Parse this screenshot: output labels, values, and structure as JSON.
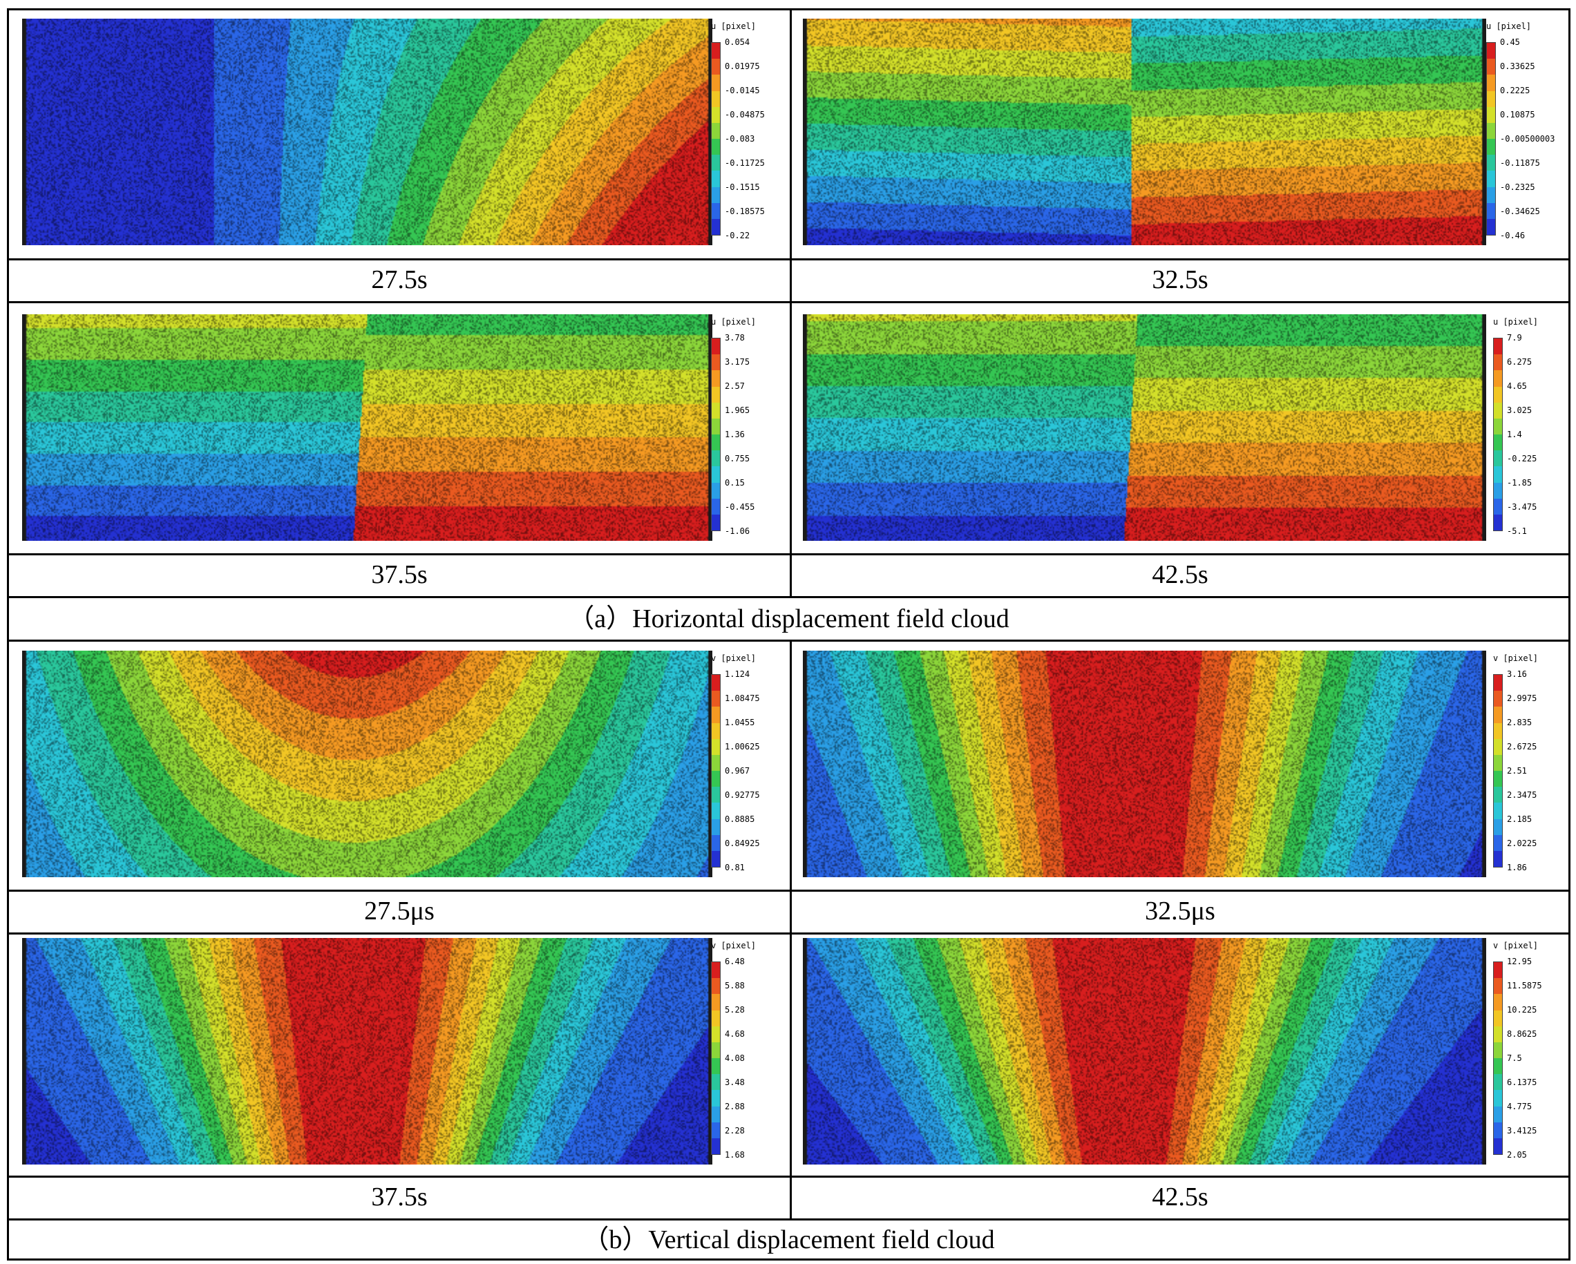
{
  "colormap": [
    "#d81e1e",
    "#ea5a20",
    "#f59a22",
    "#f2c624",
    "#d3e02a",
    "#8cd63a",
    "#35c653",
    "#2ac79c",
    "#2ac6d8",
    "#2a9fe6",
    "#2a66e8",
    "#2431d2"
  ],
  "sections": {
    "horizontal": {
      "label": "（a）Horizontal displacement field cloud"
    },
    "vertical": {
      "label": "（b）Vertical displacement field cloud"
    }
  },
  "panels": [
    {
      "id": "h-27",
      "pattern": "h1",
      "caption": "27.5s",
      "legend": {
        "title": "u [pixel]",
        "ticks": [
          "0.054",
          "0.01975",
          "-0.0145",
          "-0.04875",
          "-0.083",
          "-0.11725",
          "-0.1515",
          "-0.18575",
          "-0.22"
        ]
      }
    },
    {
      "id": "h-32",
      "pattern": "h2",
      "caption": "32.5s",
      "legend": {
        "title": "u [pixel]",
        "ticks": [
          "0.45",
          "0.33625",
          "0.2225",
          "0.10875",
          "-0.00500003",
          "-0.11875",
          "-0.2325",
          "-0.34625",
          "-0.46"
        ]
      }
    },
    {
      "id": "h-37",
      "pattern": "h3",
      "caption": "37.5s",
      "legend": {
        "title": "u [pixel]",
        "ticks": [
          "3.78",
          "3.175",
          "2.57",
          "1.965",
          "1.36",
          "0.755",
          "0.15",
          "-0.455",
          "-1.06"
        ]
      }
    },
    {
      "id": "h-42",
      "pattern": "h4",
      "caption": "42.5s",
      "legend": {
        "title": "u [pixel]",
        "ticks": [
          "7.9",
          "6.275",
          "4.65",
          "3.025",
          "1.4",
          "-0.225",
          "-1.85",
          "-3.475",
          "-5.1"
        ]
      }
    },
    {
      "id": "v-27",
      "pattern": "v1",
      "caption": "27.5μs",
      "legend": {
        "title": "v [pixel]",
        "ticks": [
          "1.124",
          "1.08475",
          "1.0455",
          "1.00625",
          "0.967",
          "0.92775",
          "0.8885",
          "0.84925",
          "0.81"
        ]
      }
    },
    {
      "id": "v-32",
      "pattern": "v2",
      "caption": "32.5μs",
      "legend": {
        "title": "v [pixel]",
        "ticks": [
          "3.16",
          "2.9975",
          "2.835",
          "2.6725",
          "2.51",
          "2.3475",
          "2.185",
          "2.0225",
          "1.86"
        ]
      }
    },
    {
      "id": "v-37",
      "pattern": "v3",
      "caption": "37.5s",
      "legend": {
        "title": "v [pixel]",
        "ticks": [
          "6.48",
          "5.88",
          "5.28",
          "4.68",
          "4.08",
          "3.48",
          "2.88",
          "2.28",
          "1.68"
        ]
      }
    },
    {
      "id": "v-42",
      "pattern": "v4",
      "caption": "42.5s",
      "legend": {
        "title": "v [pixel]",
        "ticks": [
          "12.95",
          "11.5875",
          "10.225",
          "8.8625",
          "7.5",
          "6.1375",
          "4.775",
          "3.4125",
          "2.05"
        ]
      }
    }
  ]
}
